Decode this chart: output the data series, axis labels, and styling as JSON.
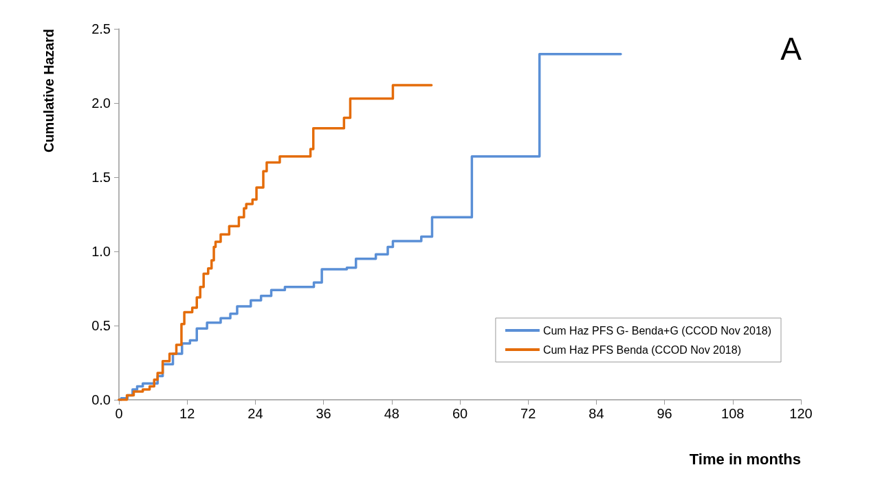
{
  "chart_data": {
    "type": "step",
    "xlabel": "Time in months",
    "ylabel": "Cumulative Hazard",
    "annotations": [
      "A"
    ],
    "xlim": [
      0,
      120
    ],
    "xticks": [
      0,
      12,
      24,
      36,
      48,
      60,
      72,
      84,
      96,
      108,
      120
    ],
    "ylim": [
      0,
      2.5
    ],
    "yticks": [
      {
        "value": 0,
        "label": "0.0"
      },
      {
        "value": 0.5,
        "label": "0.5"
      },
      {
        "value": 1,
        "label": "1.0"
      },
      {
        "value": 1.5,
        "label": "1.5"
      },
      {
        "value": 2,
        "label": "2.0"
      },
      {
        "value": 2.5,
        "label": "2.5"
      }
    ],
    "grid": false,
    "legend": "bottom right",
    "marker": "none",
    "line_style": "solid",
    "series": [
      {
        "name": "Cum Haz PFS G- Benda+G (CCOD Nov 2018)",
        "color": "#5a8fd6",
        "x": [
          0,
          0.4,
          1.5,
          2.4,
          3.2,
          4.2,
          6.8,
          7.7,
          9.5,
          11.1,
          12.5,
          13.7,
          15.5,
          17.9,
          19.6,
          20.8,
          23.2,
          25,
          26.8,
          29.2,
          34.3,
          35.7,
          40.1,
          41.7,
          45.2,
          47.3,
          48.2,
          53.2,
          55.1,
          62.1,
          74,
          88.3
        ],
        "values": [
          0,
          0.01,
          0.03,
          0.07,
          0.09,
          0.11,
          0.16,
          0.24,
          0.31,
          0.38,
          0.4,
          0.48,
          0.52,
          0.55,
          0.58,
          0.63,
          0.67,
          0.7,
          0.74,
          0.76,
          0.79,
          0.88,
          0.89,
          0.95,
          0.98,
          1.03,
          1.07,
          1.1,
          1.23,
          1.64,
          2.33,
          2.33
        ]
      },
      {
        "name": "Cum Haz PFS Benda (CCOD Nov 2018)",
        "color": "#e46c0a",
        "x": [
          0,
          1.4,
          2.6,
          4.2,
          5.4,
          6.2,
          6.8,
          7.7,
          8.9,
          10.1,
          11,
          11.5,
          12.9,
          13.7,
          14.3,
          14.9,
          15.7,
          16.3,
          16.7,
          17,
          17.9,
          19.4,
          21.1,
          22,
          22.4,
          23.5,
          24.2,
          25.4,
          26,
          28.3,
          33.7,
          34.2,
          39.6,
          40.7,
          48.2,
          55
        ],
        "values": [
          0,
          0.03,
          0.055,
          0.07,
          0.09,
          0.135,
          0.18,
          0.26,
          0.31,
          0.37,
          0.51,
          0.59,
          0.62,
          0.69,
          0.76,
          0.85,
          0.885,
          0.94,
          1.03,
          1.065,
          1.115,
          1.17,
          1.23,
          1.29,
          1.32,
          1.35,
          1.43,
          1.54,
          1.6,
          1.64,
          1.69,
          1.83,
          1.9,
          2.03,
          2.12,
          2.12
        ]
      }
    ]
  }
}
